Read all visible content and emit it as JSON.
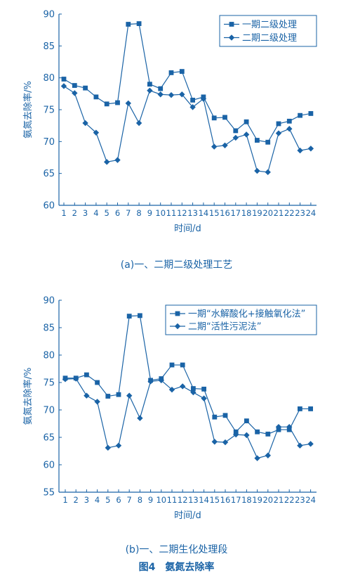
{
  "figure_title": "图4　氨氮去除率",
  "colors": {
    "primary": "#1a63a6",
    "background": "#ffffff"
  },
  "chart_data": [
    {
      "type": "line",
      "caption": "(a)一、二期二级处理工艺",
      "xlabel": "时间/d",
      "ylabel": "氨氮去除率/%",
      "x": [
        1,
        2,
        3,
        4,
        5,
        6,
        7,
        8,
        9,
        10,
        11,
        12,
        13,
        14,
        15,
        16,
        17,
        18,
        19,
        20,
        21,
        22,
        23,
        24
      ],
      "ylim": [
        60,
        90
      ],
      "yticks": [
        60,
        65,
        70,
        75,
        80,
        85,
        90
      ],
      "legend_position": "top-right",
      "grid": false,
      "series": [
        {
          "name": "一期二级处理",
          "marker": "square",
          "values": [
            79.8,
            78.8,
            78.4,
            77.0,
            75.9,
            76.1,
            88.4,
            88.5,
            79.0,
            78.3,
            80.8,
            81.0,
            76.5,
            77.0,
            73.7,
            73.8,
            71.7,
            73.1,
            70.2,
            69.9,
            72.8,
            73.2,
            74.1,
            74.4
          ]
        },
        {
          "name": "二期二级处理",
          "marker": "diamond",
          "values": [
            78.7,
            77.6,
            72.9,
            71.4,
            66.8,
            67.1,
            76.0,
            72.9,
            78.0,
            77.4,
            77.3,
            77.4,
            75.4,
            76.7,
            69.2,
            69.4,
            70.6,
            71.1,
            65.4,
            65.2,
            71.3,
            72.0,
            68.6,
            68.9
          ]
        }
      ]
    },
    {
      "type": "line",
      "caption": "(b)一、二期生化处理段",
      "xlabel": "时间/d",
      "ylabel": "氨氮去除率/%",
      "x": [
        1,
        2,
        3,
        4,
        5,
        6,
        7,
        8,
        9,
        10,
        11,
        12,
        13,
        14,
        15,
        16,
        17,
        18,
        19,
        20,
        21,
        22,
        23,
        24
      ],
      "ylim": [
        55,
        90
      ],
      "yticks": [
        55,
        60,
        65,
        70,
        75,
        80,
        85,
        90
      ],
      "legend_position": "top-right",
      "grid": false,
      "series": [
        {
          "name": "一期“水解酸化+接触氧化法”",
          "marker": "square",
          "values": [
            75.8,
            75.8,
            76.4,
            75.0,
            72.5,
            72.8,
            87.1,
            87.2,
            75.4,
            75.7,
            78.2,
            78.2,
            73.9,
            73.8,
            68.7,
            69.0,
            66.0,
            68.0,
            66.0,
            65.6,
            66.4,
            66.4,
            70.2,
            70.2
          ]
        },
        {
          "name": "二期“活性污泥法”",
          "marker": "diamond",
          "values": [
            75.6,
            75.7,
            72.6,
            71.5,
            63.1,
            63.5,
            72.6,
            68.5,
            75.2,
            75.4,
            73.7,
            74.3,
            73.2,
            72.1,
            64.2,
            64.1,
            65.5,
            65.4,
            61.2,
            61.7,
            66.9,
            66.9,
            63.5,
            63.8
          ]
        }
      ]
    }
  ]
}
